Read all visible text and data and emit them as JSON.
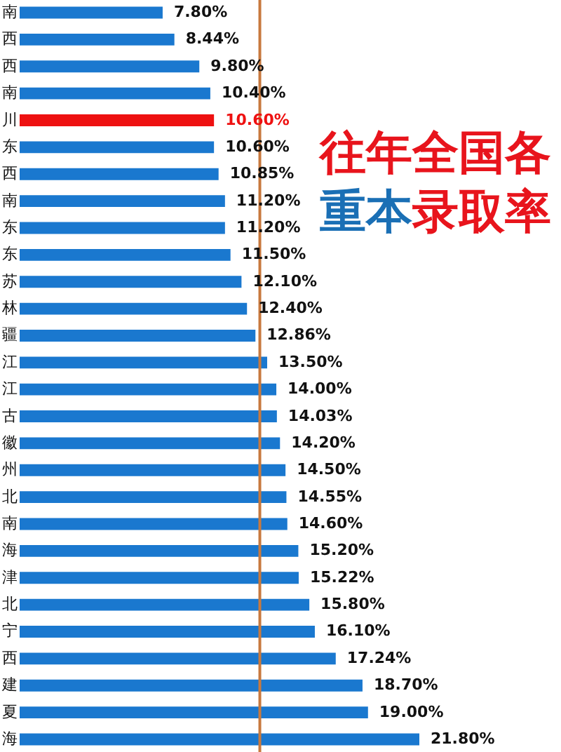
{
  "chart_data": {
    "type": "bar",
    "orientation": "horizontal",
    "title": "往年全国各重本录取率",
    "categories": [
      "南",
      "西",
      "西",
      "南",
      "川",
      "东",
      "西",
      "南",
      "东",
      "东",
      "苏",
      "林",
      "疆",
      "江",
      "江",
      "古",
      "徽",
      "州",
      "北",
      "南",
      "海",
      "津",
      "北",
      "宁",
      "西",
      "建",
      "夏",
      "海"
    ],
    "values": [
      7.8,
      8.44,
      9.8,
      10.4,
      10.6,
      10.6,
      10.85,
      11.2,
      11.2,
      11.5,
      12.1,
      12.4,
      12.86,
      13.5,
      14.0,
      14.03,
      14.2,
      14.5,
      14.55,
      14.6,
      15.2,
      15.22,
      15.8,
      16.1,
      17.24,
      18.7,
      19.0,
      21.8
    ],
    "value_labels": [
      "7.80%",
      "8.44%",
      "9.80%",
      "10.40%",
      "10.60%",
      "10.60%",
      "10.85%",
      "11.20%",
      "11.20%",
      "11.50%",
      "12.10%",
      "12.40%",
      "12.86%",
      "13.50%",
      "14.00%",
      "14.03%",
      "14.20%",
      "14.50%",
      "14.55%",
      "14.60%",
      "15.20%",
      "15.22%",
      "15.80%",
      "16.10%",
      "17.24%",
      "18.70%",
      "19.00%",
      "21.80%"
    ],
    "colors": [
      "#1a78cf",
      "#1a78cf",
      "#1a78cf",
      "#1a78cf",
      "#ee1111",
      "#1a78cf",
      "#1a78cf",
      "#1a78cf",
      "#1a78cf",
      "#1a78cf",
      "#1a78cf",
      "#1a78cf",
      "#1a78cf",
      "#1a78cf",
      "#1a78cf",
      "#1a78cf",
      "#1a78cf",
      "#1a78cf",
      "#1a78cf",
      "#1a78cf",
      "#1a78cf",
      "#1a78cf",
      "#1a78cf",
      "#1a78cf",
      "#1a78cf",
      "#1a78cf",
      "#1a78cf",
      "#1a78cf"
    ],
    "ref_lines": [
      {
        "axis": "x",
        "value": 13.1,
        "color": "#c8793e"
      }
    ],
    "tick_labels": "y"
  }
}
